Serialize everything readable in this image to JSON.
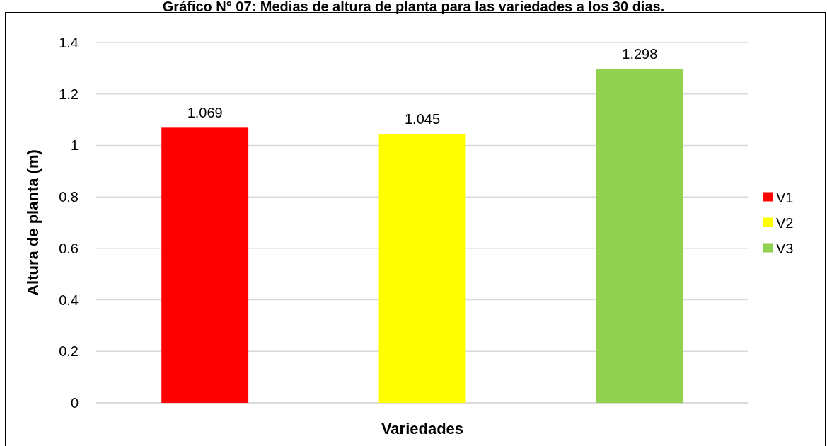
{
  "chart_data": {
    "type": "bar",
    "title": "Gráfico N° 07: Medias de altura de planta para las variedades a los 30 días.",
    "xlabel": "Variedades",
    "ylabel": "Altura de planta (m)",
    "categories": [
      null
    ],
    "series": [
      {
        "name": "V1",
        "color": "#ff0000",
        "values": [
          1.069
        ]
      },
      {
        "name": "V2",
        "color": "#ffff00",
        "values": [
          1.045
        ]
      },
      {
        "name": "V3",
        "color": "#92d050",
        "values": [
          1.298
        ]
      }
    ],
    "ylim": [
      0,
      1.4
    ],
    "yticks": [
      0,
      0.2,
      0.4,
      0.6,
      0.8,
      1,
      1.2,
      1.4
    ],
    "grid": "y",
    "legend": "right",
    "data_labels": true
  }
}
